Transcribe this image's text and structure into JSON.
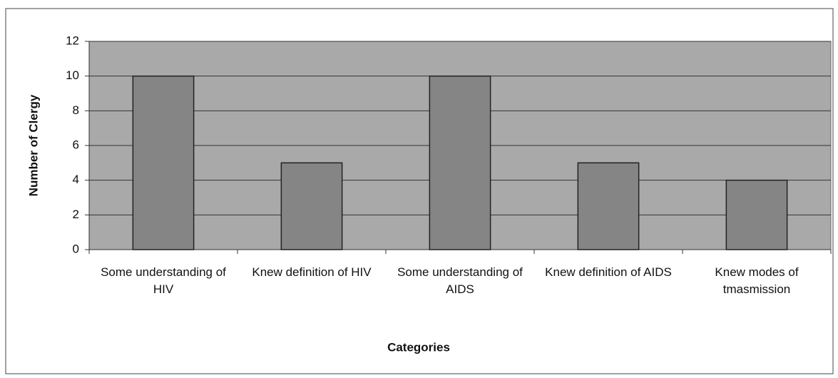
{
  "chart_data": {
    "type": "bar",
    "x_label": "Categories",
    "y_label": "Number of Clergy",
    "categories": [
      "Some understanding of HIV",
      "Knew definition of HIV",
      "Some understanding of AIDS",
      "Knew definition of AIDS",
      "Knew modes of tmasmission"
    ],
    "values": [
      10,
      5,
      10,
      5,
      4
    ],
    "color": "#858585",
    "ylim": [
      0,
      12
    ],
    "yticks": [
      0,
      2,
      4,
      6,
      8,
      10,
      12
    ],
    "grid": true
  }
}
